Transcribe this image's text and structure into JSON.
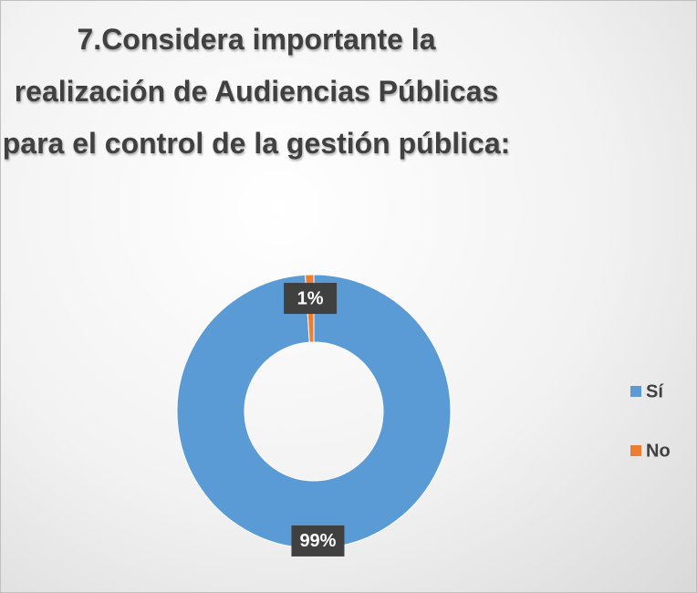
{
  "chart_data": {
    "type": "donut",
    "title": "7.Considera importante la realización de Audiencias Públicas para el control de la gestión pública:",
    "categories": [
      "Sí",
      "No"
    ],
    "values": [
      99,
      1
    ],
    "value_labels": [
      "99%",
      "1%"
    ],
    "colors": [
      "#5b9bd5",
      "#ed7d31"
    ],
    "legend": "right"
  }
}
